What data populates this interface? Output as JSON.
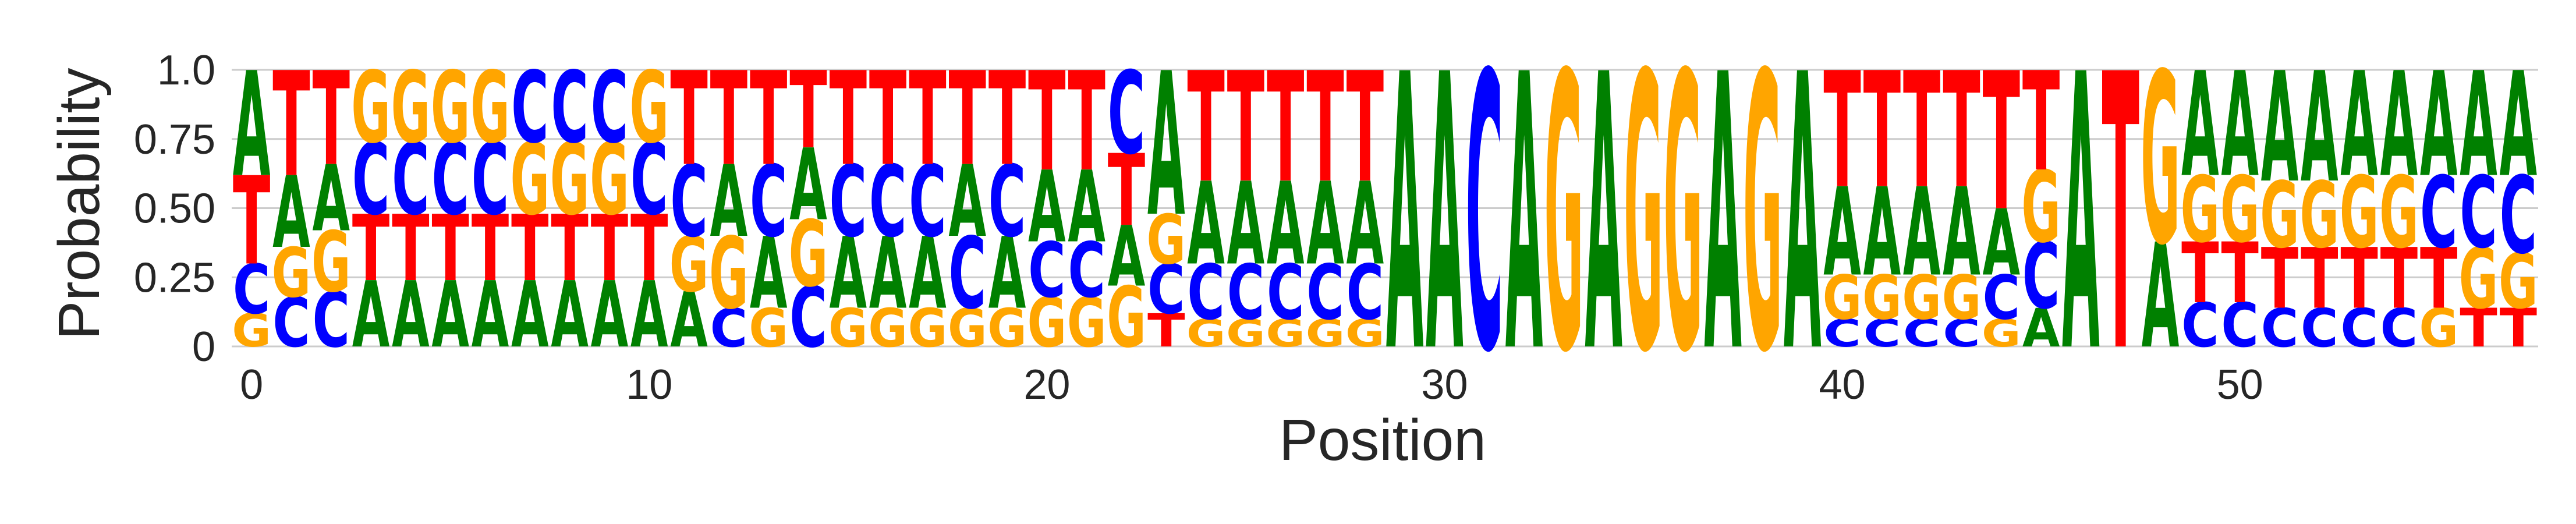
{
  "chart_data": {
    "type": "sequence-logo",
    "title": "",
    "xlabel": "Position",
    "ylabel": "Probability",
    "ylim": [
      0,
      1
    ],
    "xlim": [
      -0.5,
      57.5
    ],
    "yticks": [
      0,
      0.25,
      0.5,
      0.75,
      1.0
    ],
    "ytick_labels": [
      "0",
      "0.25",
      "0.50",
      "0.75",
      "1.0"
    ],
    "xticks": [
      0,
      10,
      20,
      30,
      40,
      50
    ],
    "xtick_labels": [
      "0",
      "10",
      "20",
      "30",
      "40",
      "50"
    ],
    "grid": "horizontal",
    "colors": {
      "A": "#008000",
      "C": "#0000ff",
      "G": "#ffa500",
      "T": "#ff0000"
    },
    "positions": [
      {
        "G": 0.12,
        "C": 0.18,
        "T": 0.32,
        "A": 0.38
      },
      {
        "C": 0.18,
        "G": 0.18,
        "A": 0.26,
        "T": 0.38
      },
      {
        "G": 0.22,
        "A": 0.24,
        "C": 0.2,
        "T": 0.34
      },
      {
        "C": 0.26,
        "G": 0.26,
        "A": 0.24,
        "T": 0.24
      },
      {
        "C": 0.26,
        "G": 0.26,
        "A": 0.24,
        "T": 0.24
      },
      {
        "C": 0.26,
        "G": 0.26,
        "A": 0.24,
        "T": 0.24
      },
      {
        "C": 0.26,
        "G": 0.26,
        "A": 0.24,
        "T": 0.24
      },
      {
        "G": 0.26,
        "C": 0.26,
        "A": 0.24,
        "T": 0.24
      },
      {
        "G": 0.26,
        "C": 0.26,
        "A": 0.24,
        "T": 0.24
      },
      {
        "G": 0.26,
        "C": 0.26,
        "A": 0.24,
        "T": 0.24
      },
      {
        "C": 0.26,
        "G": 0.26,
        "A": 0.24,
        "T": 0.24
      },
      {
        "A": 0.2,
        "C": 0.26,
        "G": 0.2,
        "T": 0.34
      },
      {
        "C": 0.14,
        "G": 0.26,
        "A": 0.26,
        "T": 0.34
      },
      {
        "G": 0.14,
        "A": 0.26,
        "C": 0.26,
        "T": 0.34
      },
      {
        "C": 0.22,
        "A": 0.26,
        "C2": 0,
        "T": 0.28,
        "G": 0.24
      },
      {
        "G": 0.14,
        "A": 0.26,
        "C": 0.26,
        "T": 0.34
      },
      {
        "G": 0.14,
        "A": 0.26,
        "C": 0.26,
        "T": 0.34
      },
      {
        "G": 0.14,
        "A": 0.26,
        "C": 0.26,
        "T": 0.34
      },
      {
        "G": 0.14,
        "C": 0.26,
        "A": 0.26,
        "T": 0.34
      },
      {
        "G": 0.14,
        "A": 0.26,
        "C": 0.26,
        "T": 0.34
      },
      {
        "C": 0.2,
        "G": 0.18,
        "A": 0.26,
        "T": 0.36
      },
      {
        "C": 0.2,
        "G": 0.18,
        "A": 0.26,
        "T": 0.36
      },
      {
        "T": 0.26,
        "G": 0.22,
        "A": 0.22,
        "T2": 0,
        "C": 0.3
      },
      {
        "T": 0.12,
        "C": 0.18,
        "G": 0.18,
        "A": 0.52
      },
      {
        "G": 0.1,
        "C": 0.2,
        "A": 0.3,
        "T": 0.4
      },
      {
        "G": 0.1,
        "C": 0.2,
        "A": 0.3,
        "T": 0.4
      },
      {
        "G": 0.1,
        "C": 0.2,
        "A": 0.3,
        "T": 0.4
      },
      {
        "G": 0.1,
        "C": 0.2,
        "A": 0.3,
        "T": 0.4
      },
      {
        "G": 0.1,
        "C": 0.2,
        "A": 0.3,
        "T": 0.4
      },
      {
        "A": 1.0
      },
      {
        "A": 1.0
      },
      {
        "C": 1.0
      },
      {
        "A": 1.0
      },
      {
        "G": 1.0
      },
      {
        "A": 1.0
      },
      {
        "G": 1.0
      },
      {
        "G": 1.0
      },
      {
        "A": 1.0
      },
      {
        "G": 1.0
      },
      {
        "A": 1.0
      },
      {
        "C": 0.1,
        "G": 0.16,
        "T": 0.42,
        "A": 0.32
      },
      {
        "C": 0.1,
        "G": 0.16,
        "T": 0.42,
        "A": 0.32
      },
      {
        "C": 0.1,
        "G": 0.16,
        "T": 0.42,
        "A": 0.32
      },
      {
        "C": 0.1,
        "G": 0.16,
        "T": 0.42,
        "A": 0.32
      },
      {
        "G": 0.1,
        "C": 0.16,
        "A": 0.24,
        "T": 0.5
      },
      {
        "A": 0.14,
        "G": 0.26,
        "C": 0.24,
        "T": 0.36
      },
      {
        "A": 1.0
      },
      {
        "T": 1.0
      },
      {
        "G": 0.62,
        "A": 0.38
      },
      {
        "C": 0.16,
        "G": 0.24,
        "T": 0.22,
        "A": 0.38
      },
      {
        "C": 0.16,
        "G": 0.24,
        "T": 0.22,
        "A": 0.38
      },
      {
        "C": 0.14,
        "T": 0.22,
        "G": 0.24,
        "A": 0.4
      },
      {
        "C": 0.14,
        "T": 0.22,
        "G": 0.24,
        "A": 0.4
      },
      {
        "C": 0.14,
        "G": 0.26,
        "T": 0.22,
        "A": 0.38
      },
      {
        "C": 0.14,
        "G": 0.26,
        "T": 0.22,
        "A": 0.38
      },
      {
        "G": 0.14,
        "C": 0.26,
        "T": 0.22,
        "A": 0.38
      },
      {
        "T": 0.14,
        "C": 0.26,
        "G": 0.22,
        "A": 0.38
      },
      {
        "T": 0.14,
        "G": 0.2,
        "C": 0.28,
        "A": 0.38
      }
    ]
  }
}
